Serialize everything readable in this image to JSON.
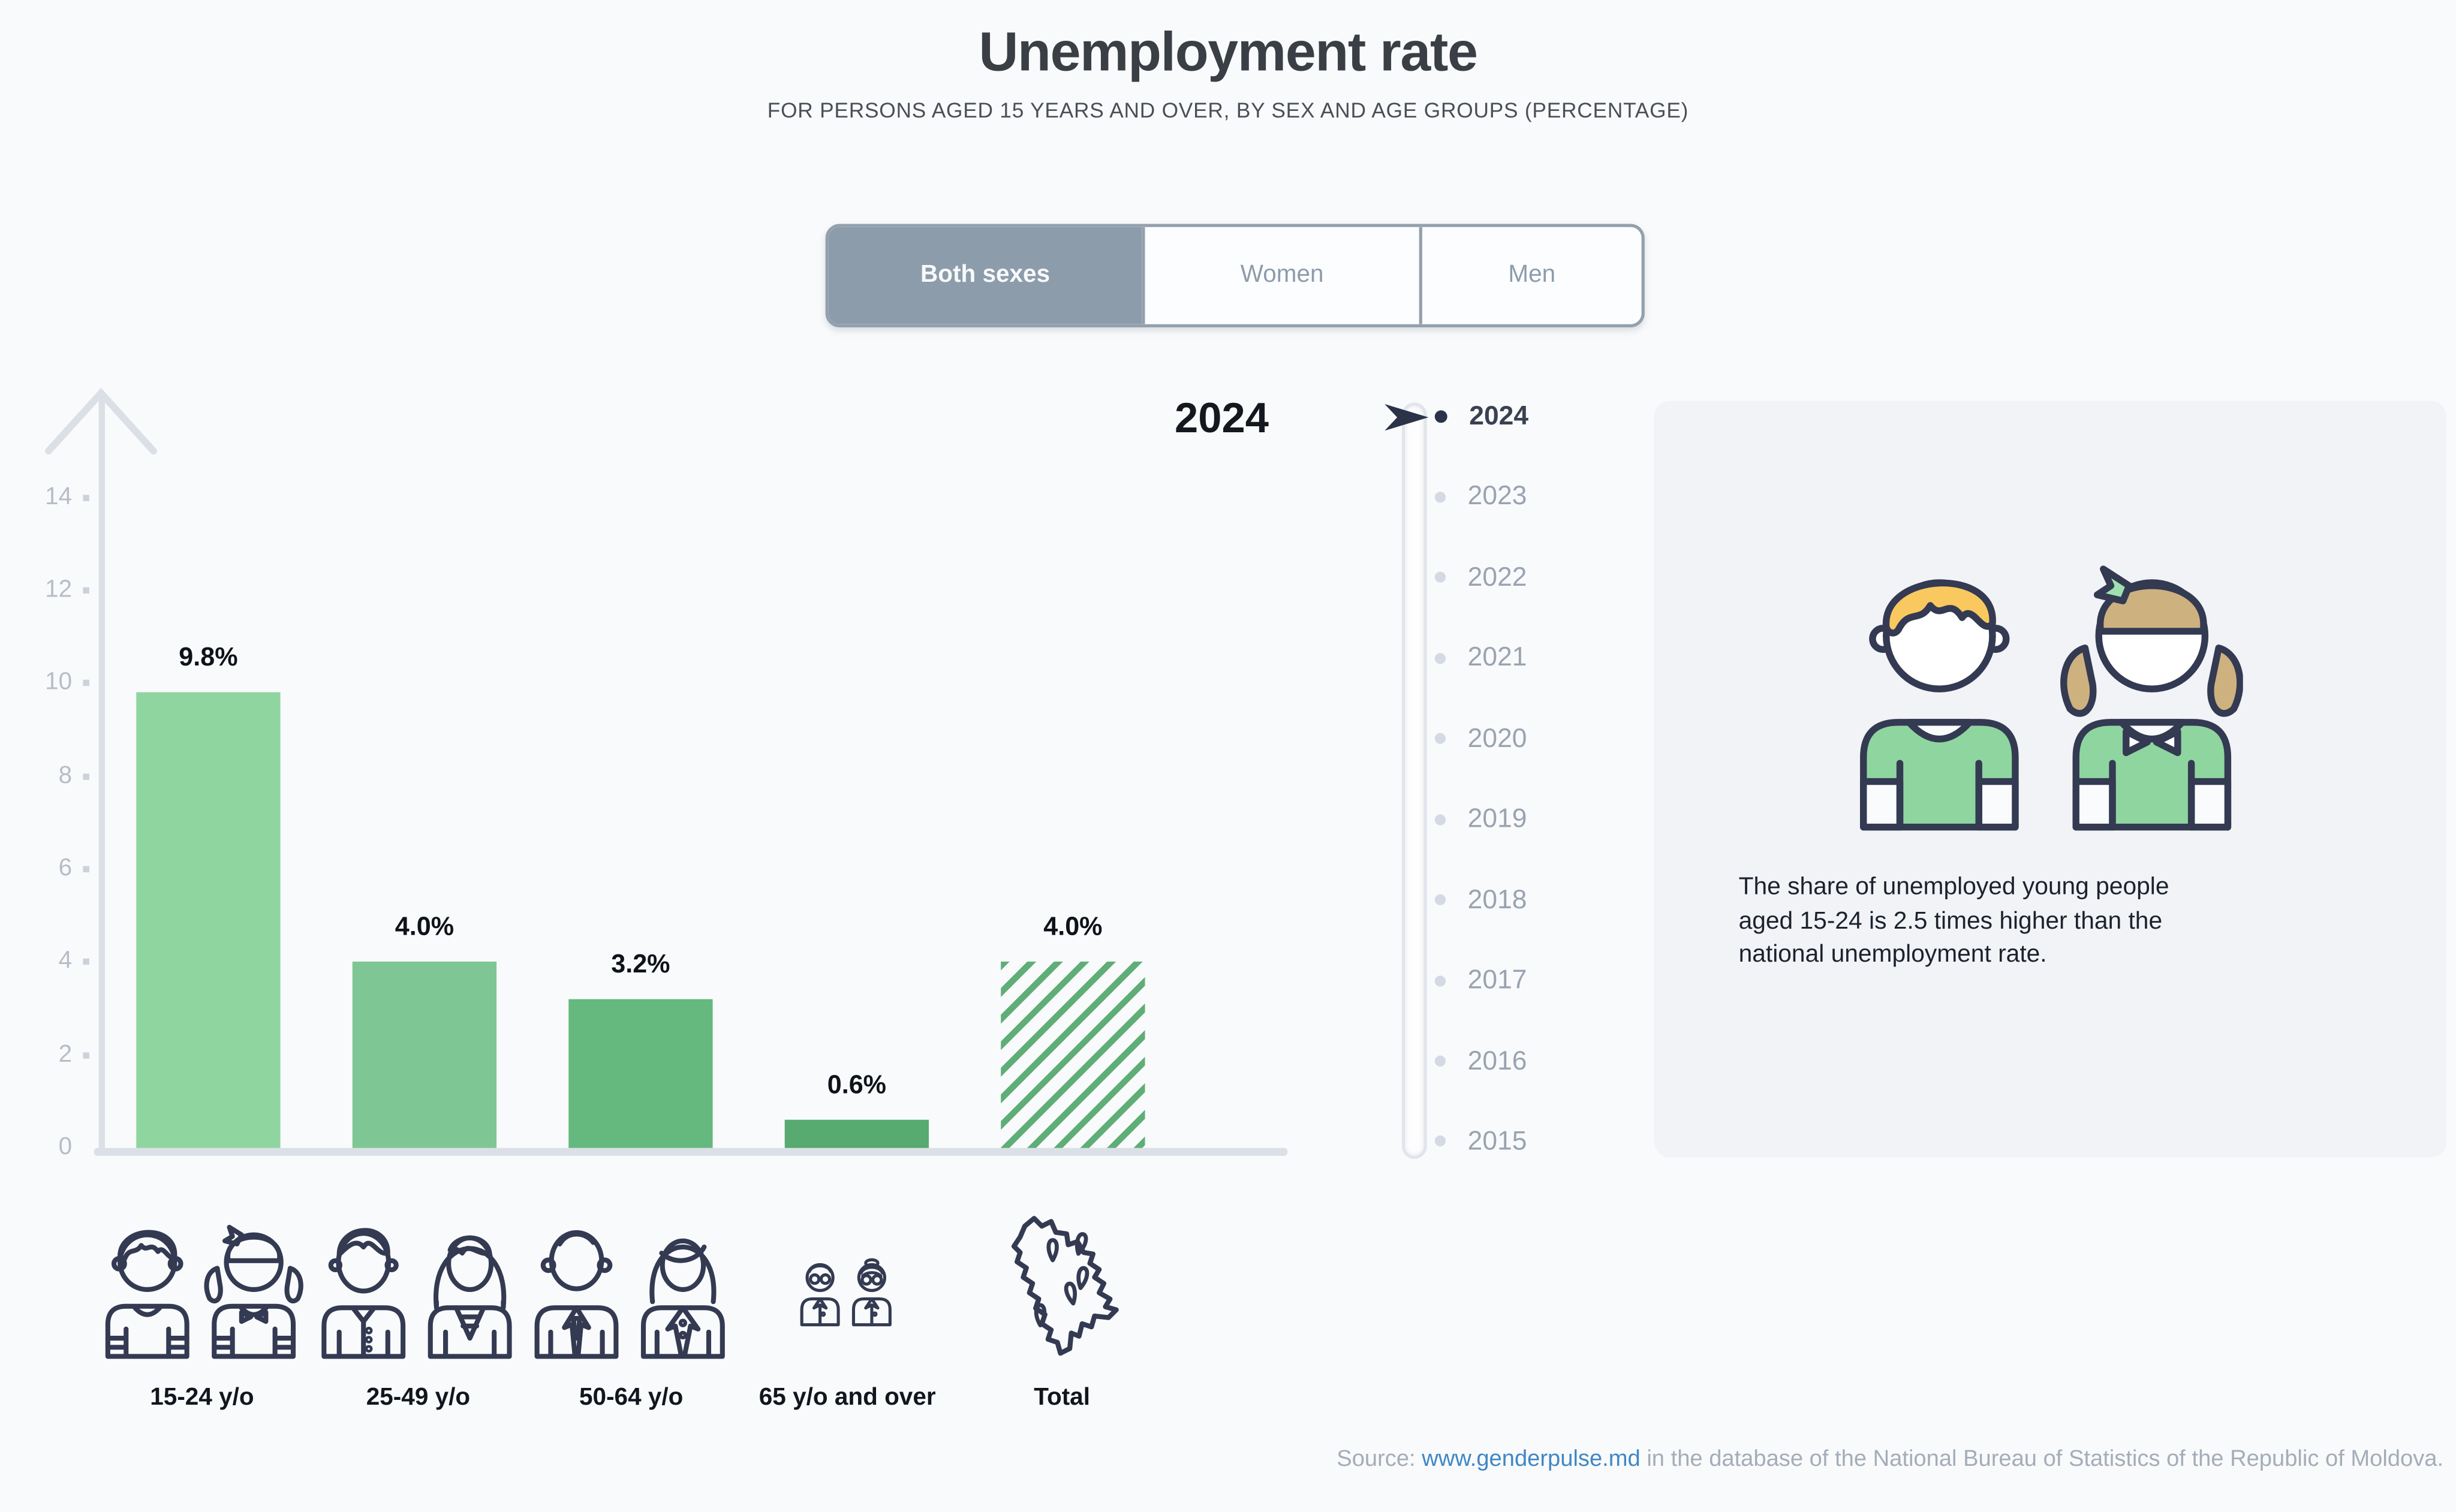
{
  "page": {
    "title": "Unemployment rate",
    "subtitle": "FOR PERSONS AGED 15 YEARS AND OVER, BY SEX AND AGE GROUPS (PERCENTAGE)"
  },
  "tabs": {
    "items": [
      {
        "label": "Both sexes",
        "selected": true
      },
      {
        "label": "Women",
        "selected": false
      },
      {
        "label": "Men",
        "selected": false
      }
    ]
  },
  "chart_data": {
    "type": "bar",
    "title": "Unemployment rate",
    "subtitle": "For persons aged 15 years and over, by sex and age groups (percentage)",
    "year": "2024",
    "sex_filter": "Both sexes",
    "categories": [
      "15-24 y/o",
      "25-49 y/o",
      "50-64 y/o",
      "65 y/o and over",
      "Total"
    ],
    "values": [
      9.8,
      4.0,
      3.2,
      0.6,
      4.0
    ],
    "labels": [
      "9.8%",
      "4.0%",
      "3.2%",
      "0.6%",
      "4.0%"
    ],
    "bar_colors": [
      "#8fd5a0",
      "#7fc695",
      "#65b97e",
      "#57aa70",
      "#5fae77"
    ],
    "hatched": [
      false,
      false,
      false,
      false,
      true
    ],
    "xlabel": "",
    "ylabel": "",
    "ylim": [
      0,
      15
    ],
    "yticks": [
      0,
      2,
      4,
      6,
      8,
      10,
      12,
      14
    ],
    "grid": false,
    "legend": "none"
  },
  "timeline": {
    "selected_year": "2024",
    "years": [
      "2024",
      "2023",
      "2022",
      "2021",
      "2020",
      "2019",
      "2018",
      "2017",
      "2016",
      "2015"
    ]
  },
  "infobox": {
    "lines": [
      "The share of unemployed young people",
      "aged 15-24 is 2.5 times higher than the",
      "national unemployment rate."
    ]
  },
  "source": {
    "prefix": "Source: ",
    "link": "www.genderpulse.md",
    "suffix": " in the database of the National Bureau of Statistics of the Republic of Moldova."
  },
  "colors": {
    "page_bg": "#f9fafb",
    "infobox_bg": "#f1f3f6",
    "axis_gray": "#dbe0e7",
    "selected_tab": "#8d9cab",
    "timeline_dark": "#2b3348",
    "link_blue": "#3f87c5",
    "icon_navy": "#333a52",
    "hair_yellow": "#f9c85f",
    "hair_tan": "#cdb17e",
    "shirt_green": "#8fd5a0"
  }
}
